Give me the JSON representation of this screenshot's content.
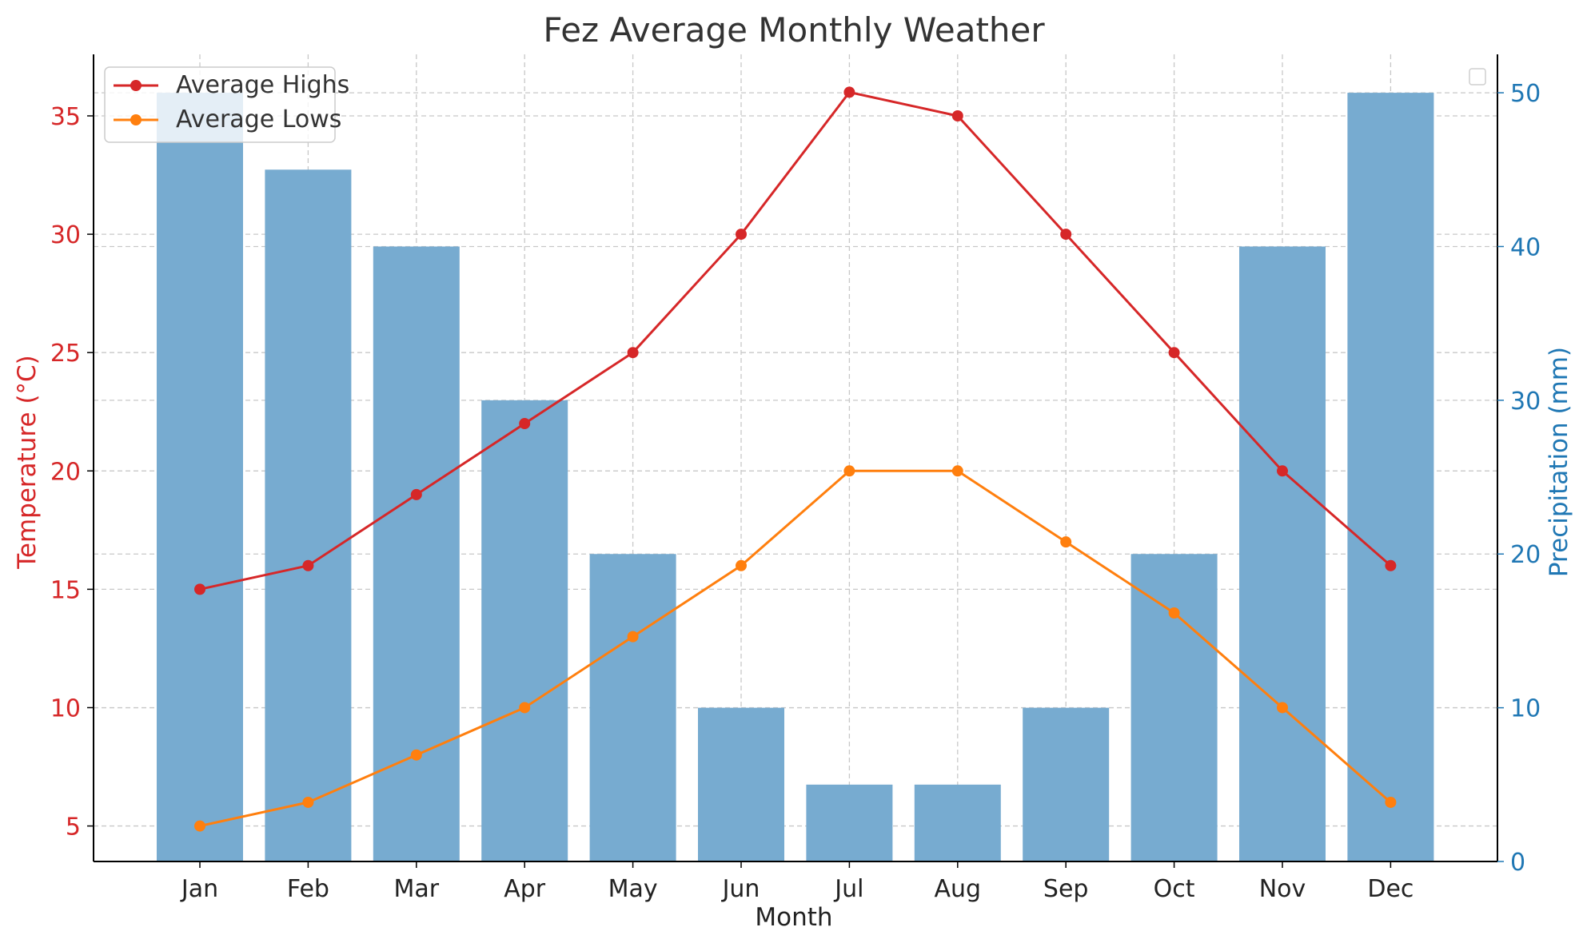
{
  "chart_data": {
    "type": "bar",
    "title": "Fez Average Monthly Weather",
    "xlabel": "Month",
    "ylabel_left": "Temperature (°C)",
    "ylabel_right": "Precipitation (mm)",
    "categories": [
      "Jan",
      "Feb",
      "Mar",
      "Apr",
      "May",
      "Jun",
      "Jul",
      "Aug",
      "Sep",
      "Oct",
      "Nov",
      "Dec"
    ],
    "left_axis": {
      "range": [
        3.5,
        37.6
      ],
      "ticks": [
        5,
        10,
        15,
        20,
        25,
        30,
        35
      ],
      "tick_labels": [
        "5",
        "10",
        "15",
        "20",
        "25",
        "30",
        "35"
      ]
    },
    "right_axis": {
      "range": [
        0,
        52.5
      ],
      "ticks": [
        0,
        10,
        20,
        30,
        40,
        50
      ],
      "tick_labels": [
        "0",
        "10",
        "20",
        "30",
        "40",
        "50"
      ]
    },
    "grid": true,
    "legend_placement": "top-left",
    "series": [
      {
        "name": "Average Highs",
        "kind": "line",
        "axis": "left",
        "color": "#d62728",
        "values": [
          15,
          16,
          19,
          22,
          25,
          30,
          36,
          35,
          30,
          25,
          20,
          16
        ]
      },
      {
        "name": "Average Lows",
        "kind": "line",
        "axis": "left",
        "color": "#ff7f0e",
        "values": [
          5,
          6,
          8,
          10,
          13,
          16,
          20,
          20,
          17,
          14,
          10,
          6
        ]
      },
      {
        "name": "",
        "kind": "bar",
        "axis": "right",
        "color": "#1f77b4",
        "values": [
          50,
          45,
          40,
          30,
          20,
          10,
          5,
          5,
          10,
          20,
          40,
          50
        ]
      }
    ],
    "colors": {
      "left_axis": "#d62728",
      "right_axis": "#1f77b4",
      "bars": "#77abd0",
      "grid": "#c8c8c8",
      "text": "#333333"
    }
  }
}
